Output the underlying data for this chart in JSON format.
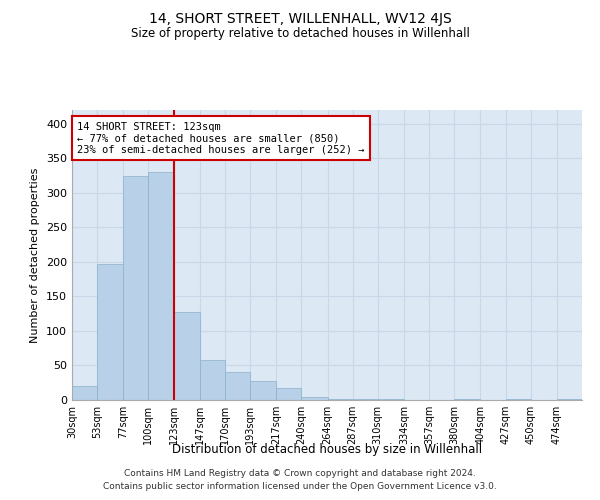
{
  "title": "14, SHORT STREET, WILLENHALL, WV12 4JS",
  "subtitle": "Size of property relative to detached houses in Willenhall",
  "xlabel": "Distribution of detached houses by size in Willenhall",
  "ylabel": "Number of detached properties",
  "footer_line1": "Contains HM Land Registry data © Crown copyright and database right 2024.",
  "footer_line2": "Contains public sector information licensed under the Open Government Licence v3.0.",
  "annotation_line1": "14 SHORT STREET: 123sqm",
  "annotation_line2": "← 77% of detached houses are smaller (850)",
  "annotation_line3": "23% of semi-detached houses are larger (252) →",
  "property_line_x": 123,
  "bar_color": "#b8d0e8",
  "bar_edge_color": "#8ab0cc",
  "grid_color": "#c8d8e8",
  "background_color": "#dce8f4",
  "annotation_box_color": "#ffffff",
  "annotation_box_edge": "#cc0000",
  "vline_color": "#cc0000",
  "bins": [
    30,
    53,
    77,
    100,
    123,
    147,
    170,
    193,
    217,
    240,
    264,
    287,
    310,
    334,
    357,
    380,
    404,
    427,
    450,
    474,
    497
  ],
  "values": [
    20,
    197,
    325,
    330,
    128,
    58,
    40,
    28,
    18,
    5,
    2,
    1,
    1,
    0,
    0,
    1,
    0,
    1,
    0,
    1
  ],
  "ylim": [
    0,
    420
  ],
  "yticks": [
    0,
    50,
    100,
    150,
    200,
    250,
    300,
    350,
    400
  ]
}
